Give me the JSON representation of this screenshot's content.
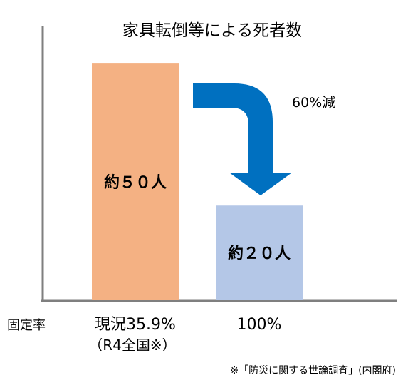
{
  "chart_data": {
    "type": "bar",
    "title": "家具転倒等による死者数",
    "x_axis_name": "固定率",
    "categories": [
      {
        "line1": "現況35.9%",
        "line2": "（R4全国※）"
      },
      {
        "line1": "100%",
        "line2": ""
      }
    ],
    "values": [
      50,
      20
    ],
    "value_labels": [
      "約５０人",
      "約２０人"
    ],
    "bar_colors": [
      "#f4b183",
      "#b4c7e7"
    ],
    "annotation": "60%減",
    "arrow_color": "#0070c0",
    "axis_color": "#7f7f7f",
    "ylim": [
      0,
      58
    ],
    "grid": false,
    "legend": "none",
    "source_note": "※「防災に関する世論調査」(内閣府)"
  }
}
